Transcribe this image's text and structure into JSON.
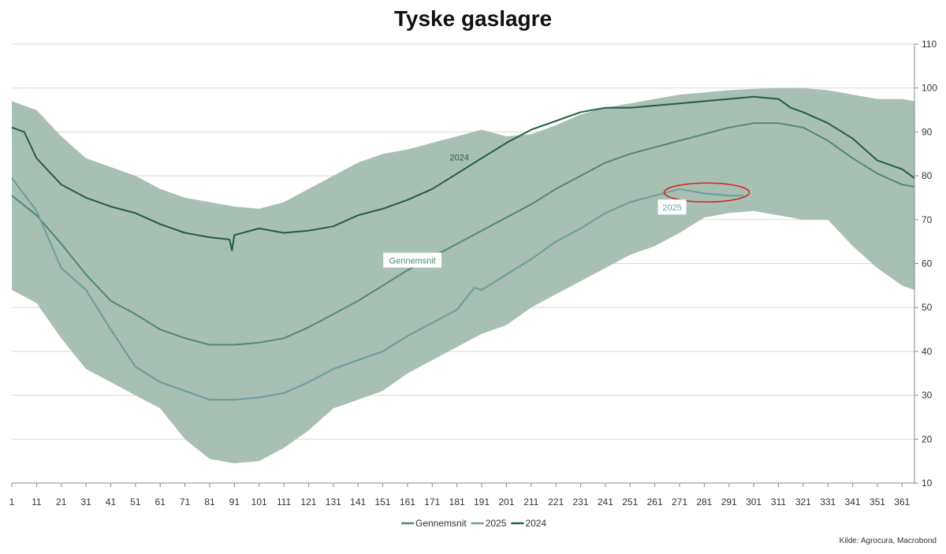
{
  "chart_data": {
    "type": "line",
    "title": "Tyske gaslagre",
    "source": "Kilde: Agrocura, Macrobond",
    "xlim": [
      1,
      366
    ],
    "ylim": [
      10,
      110
    ],
    "x_ticks": [
      1,
      11,
      21,
      31,
      41,
      51,
      61,
      71,
      81,
      91,
      101,
      111,
      121,
      131,
      141,
      151,
      161,
      171,
      181,
      191,
      201,
      211,
      221,
      231,
      241,
      251,
      261,
      271,
      281,
      291,
      301,
      311,
      321,
      331,
      341,
      351,
      361
    ],
    "y_ticks": [
      10,
      20,
      30,
      40,
      50,
      60,
      70,
      80,
      90,
      100,
      110
    ],
    "y_axis_side": "right",
    "grid": true,
    "legend_position": "bottom",
    "colors": {
      "band": "#a8bfb3",
      "gennemsnit": "#4f8a70",
      "y2025": "#6a9ea0",
      "y2024": "#1f5e45",
      "highlight": "#d62020"
    },
    "band": {
      "name": "",
      "x": [
        1,
        11,
        21,
        31,
        41,
        51,
        61,
        71,
        81,
        91,
        101,
        111,
        121,
        131,
        141,
        151,
        161,
        171,
        181,
        191,
        201,
        211,
        221,
        231,
        241,
        251,
        261,
        271,
        281,
        291,
        301,
        311,
        321,
        331,
        341,
        351,
        361,
        366
      ],
      "upper": [
        97,
        95,
        89,
        84,
        82,
        80,
        77,
        75,
        74,
        73,
        72.5,
        74,
        77,
        80,
        83,
        85,
        86,
        87.5,
        89,
        90.5,
        89,
        89.5,
        91.5,
        94,
        95.5,
        96.5,
        97.5,
        98.5,
        99,
        99.5,
        99.8,
        100,
        100,
        99.5,
        98.5,
        97.5,
        97.5,
        97
      ],
      "lower": [
        54,
        51,
        43,
        36,
        33,
        30,
        27,
        20,
        15.5,
        14.5,
        15,
        18,
        22,
        27,
        29,
        31,
        35,
        38,
        41,
        44,
        46,
        50,
        53,
        56,
        59,
        62,
        64,
        67,
        70.5,
        71.5,
        72,
        71,
        70,
        70,
        64,
        59,
        55,
        54
      ]
    },
    "series": [
      {
        "name": "Gennemsnit",
        "x": [
          1,
          11,
          21,
          31,
          41,
          51,
          61,
          71,
          81,
          91,
          101,
          111,
          121,
          131,
          141,
          151,
          161,
          171,
          181,
          191,
          201,
          211,
          221,
          231,
          241,
          251,
          261,
          271,
          281,
          291,
          301,
          311,
          321,
          331,
          341,
          351,
          361,
          366
        ],
        "values": [
          75.5,
          71,
          64.5,
          57.5,
          51.5,
          48.5,
          45,
          43,
          41.5,
          41.5,
          42,
          43,
          45.5,
          48.5,
          51.5,
          55,
          58.5,
          61.5,
          64.5,
          67.5,
          70.5,
          73.5,
          77,
          80,
          83,
          85,
          86.5,
          88,
          89.5,
          91,
          92,
          92,
          91,
          88,
          84,
          80.5,
          78,
          77.5
        ]
      },
      {
        "name": "2025",
        "x": [
          1,
          11,
          21,
          31,
          41,
          51,
          61,
          71,
          81,
          91,
          101,
          111,
          121,
          131,
          141,
          151,
          161,
          171,
          181,
          188,
          191,
          201,
          211,
          221,
          231,
          241,
          251,
          261,
          271,
          281,
          291,
          297
        ],
        "values": [
          79.5,
          72,
          59,
          54,
          45,
          36.5,
          33,
          31,
          29,
          29,
          29.5,
          30.5,
          33,
          36,
          38,
          40,
          43.5,
          46.5,
          49.5,
          54.5,
          54,
          57.5,
          61,
          65,
          68,
          71.5,
          74,
          75.5,
          77,
          76,
          75.5,
          75.5
        ]
      },
      {
        "name": "2024",
        "x": [
          1,
          6,
          11,
          21,
          31,
          41,
          51,
          61,
          71,
          81,
          89,
          90,
          91,
          101,
          111,
          121,
          131,
          141,
          151,
          161,
          171,
          181,
          191,
          201,
          211,
          221,
          231,
          241,
          251,
          261,
          271,
          281,
          291,
          301,
          311,
          316,
          321,
          331,
          341,
          351,
          361,
          366
        ],
        "values": [
          91,
          90,
          84,
          78,
          75,
          73,
          71.5,
          69,
          67,
          66,
          65.5,
          63,
          66.5,
          68,
          67,
          67.5,
          68.5,
          71,
          72.5,
          74.5,
          77,
          80.5,
          84,
          87.5,
          90.5,
          92.5,
          94.5,
          95.5,
          95.5,
          96,
          96.5,
          97,
          97.5,
          98,
          97.5,
          95.5,
          94.5,
          92,
          88.5,
          83.5,
          81.5,
          79.5
        ]
      }
    ],
    "annotations": {
      "label_2024": "2024",
      "label_2025": "2025",
      "label_gennemsnit": "Gennemsnit"
    }
  }
}
